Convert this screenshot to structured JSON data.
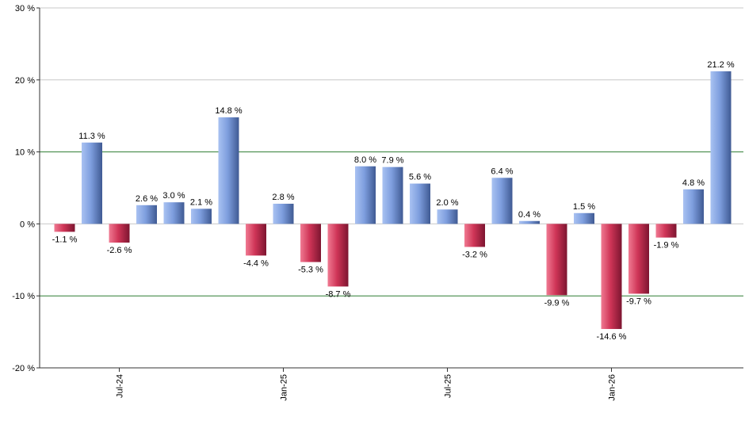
{
  "chart_data": {
    "type": "bar",
    "title": "",
    "xlabel": "",
    "ylabel": "",
    "ylim": [
      -20,
      30
    ],
    "y_ticks": [
      {
        "value": -20,
        "label": "-20 %"
      },
      {
        "value": -10,
        "label": "-10 %"
      },
      {
        "value": 0,
        "label": "0 %"
      },
      {
        "value": 10,
        "label": "10 %"
      },
      {
        "value": 20,
        "label": "20 %"
      },
      {
        "value": 30,
        "label": "30 %"
      }
    ],
    "x_ticks": [
      {
        "bar_index": 2,
        "label": "Jul-24"
      },
      {
        "bar_index": 8,
        "label": "Jan-25"
      },
      {
        "bar_index": 14,
        "label": "Jul-25"
      },
      {
        "bar_index": 20,
        "label": "Jan-26"
      }
    ],
    "grid": true,
    "highlight_gridlines": [
      10,
      -10
    ],
    "colors": {
      "positive": "#7f9fd8",
      "negative": "#cc3355",
      "grid": "#c8c8c8",
      "highlight_grid": "#2e7d32",
      "axis": "#333333",
      "text": "#000000"
    },
    "values": [
      -1.1,
      11.3,
      -2.6,
      2.6,
      3.0,
      2.1,
      14.8,
      -4.4,
      2.8,
      -5.3,
      -8.7,
      8.0,
      7.9,
      5.6,
      2.0,
      -3.2,
      6.4,
      0.4,
      -9.9,
      1.5,
      -14.6,
      -9.7,
      -1.9,
      4.8,
      21.2
    ],
    "labels": [
      "-1.1 %",
      "11.3 %",
      "-2.6 %",
      "2.6 %",
      "3.0 %",
      "2.1 %",
      "14.8 %",
      "-4.4 %",
      "2.8 %",
      "-5.3 %",
      "-8.7 %",
      "8.0 %",
      "7.9 %",
      "5.6 %",
      "2.0 %",
      "-3.2 %",
      "6.4 %",
      "0.4 %",
      "-9.9 %",
      "1.5 %",
      "-14.6 %",
      "-9.7 %",
      "-1.9 %",
      "4.8 %",
      "21.2 %"
    ]
  }
}
